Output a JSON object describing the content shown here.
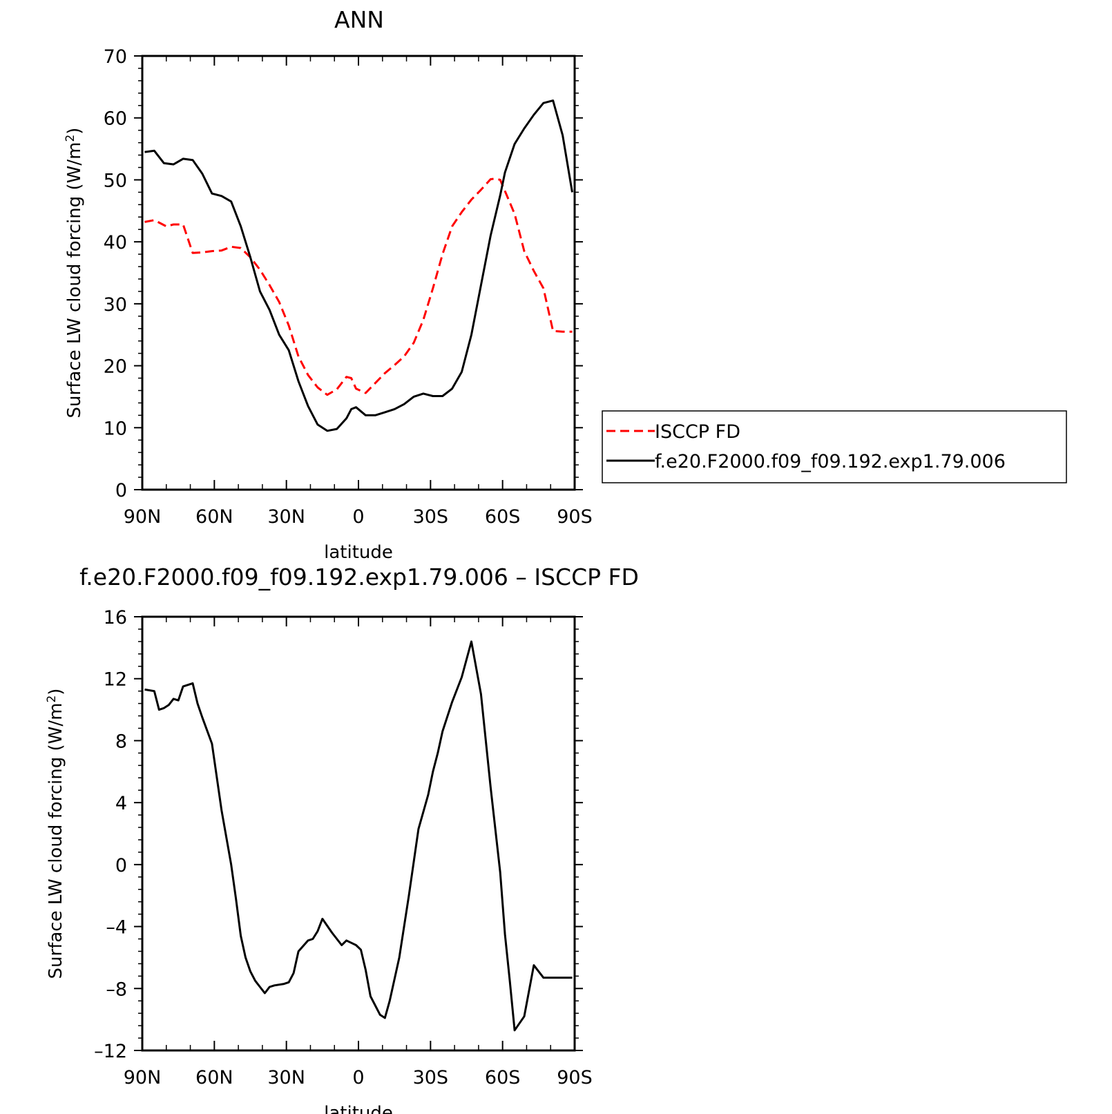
{
  "chart_data": [
    {
      "type": "line",
      "title": "ANN",
      "xlabel": "latitude",
      "ylabel": "Surface LW cloud forcing (W/m",
      "ylabel_sup": "2",
      "ylabel_end": ")",
      "xlim": [
        90,
        -90
      ],
      "ylim": [
        0,
        70
      ],
      "x_ticks": [
        {
          "value": 90,
          "label": "90N"
        },
        {
          "value": 60,
          "label": "60N"
        },
        {
          "value": 30,
          "label": "30N"
        },
        {
          "value": 0,
          "label": "0"
        },
        {
          "value": -30,
          "label": "30S"
        },
        {
          "value": -60,
          "label": "60S"
        },
        {
          "value": -90,
          "label": "90S"
        }
      ],
      "y_ticks": [
        {
          "value": 0,
          "label": "0"
        },
        {
          "value": 10,
          "label": "10"
        },
        {
          "value": 20,
          "label": "20"
        },
        {
          "value": 30,
          "label": "30"
        },
        {
          "value": 40,
          "label": "40"
        },
        {
          "value": 50,
          "label": "50"
        },
        {
          "value": 60,
          "label": "60"
        },
        {
          "value": 70,
          "label": "70"
        }
      ],
      "legend_position": "right",
      "series": [
        {
          "name": "ISCCP FD",
          "color": "#ff0000",
          "dash": true,
          "x": [
            89,
            85,
            80,
            77,
            73,
            69,
            65,
            61,
            57,
            53,
            49,
            45,
            41,
            37,
            33,
            29,
            25,
            21,
            17,
            13,
            9,
            5,
            3,
            1,
            -3,
            -7,
            -11,
            -15,
            -19,
            -23,
            -27,
            -31,
            -35,
            -39,
            -43,
            -47,
            -51,
            -55,
            -57,
            -59,
            -61,
            -65,
            -69,
            -73,
            -77,
            -81,
            -85,
            -89
          ],
          "y": [
            43.2,
            43.5,
            42.5,
            42.8,
            42.8,
            38.2,
            38.3,
            38.5,
            38.6,
            39.2,
            39.0,
            37.5,
            35.5,
            33.0,
            30.3,
            26.5,
            21.5,
            18.5,
            16.5,
            15.3,
            16.2,
            18.2,
            18.0,
            16.3,
            15.6,
            17.2,
            18.8,
            20.1,
            21.5,
            23.7,
            27.4,
            32.5,
            38.0,
            42.5,
            44.8,
            46.8,
            48.4,
            50.1,
            50.2,
            50.0,
            48.2,
            44.5,
            38.5,
            35.3,
            32.5,
            25.6,
            25.5,
            25.5
          ]
        },
        {
          "name": "f.e20.F2000.f09_f09.192.exp1.79.006",
          "color": "#000000",
          "dash": false,
          "x": [
            89,
            85,
            81,
            77,
            73,
            69,
            65,
            61,
            57,
            53,
            49,
            45,
            41,
            37,
            33,
            29,
            25,
            21,
            17,
            13,
            9,
            5,
            3,
            1,
            -3,
            -7,
            -11,
            -15,
            -19,
            -23,
            -27,
            -31,
            -35,
            -39,
            -43,
            -47,
            -51,
            -55,
            -59,
            -61,
            -63,
            -65,
            -69,
            -73,
            -77,
            -81,
            -85,
            -89
          ],
          "y": [
            54.5,
            54.7,
            52.7,
            52.5,
            53.4,
            53.2,
            51.0,
            47.8,
            47.4,
            46.5,
            42.5,
            37.5,
            32.0,
            29.0,
            25.0,
            22.5,
            17.5,
            13.5,
            10.5,
            9.5,
            9.8,
            11.5,
            13.0,
            13.3,
            12.0,
            12.0,
            12.5,
            13.0,
            13.8,
            15.0,
            15.5,
            15.1,
            15.1,
            16.3,
            19.0,
            25.0,
            33.0,
            41.0,
            47.5,
            51.2,
            53.5,
            55.8,
            58.3,
            60.5,
            62.4,
            62.8,
            57.2,
            48.0
          ]
        }
      ]
    },
    {
      "type": "line",
      "title": "f.e20.F2000.f09_f09.192.exp1.79.006 – ISCCP FD",
      "xlabel": "latitude",
      "ylabel": "Surface LW cloud forcing (W/m",
      "ylabel_sup": "2",
      "ylabel_end": ")",
      "xlim": [
        90,
        -90
      ],
      "ylim": [
        -12,
        16
      ],
      "x_ticks": [
        {
          "value": 90,
          "label": "90N"
        },
        {
          "value": 60,
          "label": "60N"
        },
        {
          "value": 30,
          "label": "30N"
        },
        {
          "value": 0,
          "label": "0"
        },
        {
          "value": -30,
          "label": "30S"
        },
        {
          "value": -60,
          "label": "60S"
        },
        {
          "value": -90,
          "label": "90S"
        }
      ],
      "y_ticks": [
        {
          "value": -12,
          "label": "–12"
        },
        {
          "value": -8,
          "label": "–8"
        },
        {
          "value": -4,
          "label": "–4"
        },
        {
          "value": 0,
          "label": "0"
        },
        {
          "value": 4,
          "label": "4"
        },
        {
          "value": 8,
          "label": "8"
        },
        {
          "value": 12,
          "label": "12"
        },
        {
          "value": 16,
          "label": "16"
        }
      ],
      "series": [
        {
          "color": "#000000",
          "dash": false,
          "x": [
            89,
            85,
            83,
            81,
            79,
            77,
            75,
            73,
            69,
            67,
            65,
            61,
            57,
            53,
            51,
            49,
            47,
            45,
            43,
            41,
            39,
            37,
            35,
            31,
            29,
            27,
            25,
            21,
            19,
            17,
            15,
            11,
            7,
            5,
            1,
            -1,
            -3,
            -5,
            -9,
            -11,
            -13,
            -17,
            -21,
            -25,
            -29,
            -31,
            -33,
            -35,
            -39,
            -43,
            -47,
            -51,
            -55,
            -59,
            -61,
            -63,
            -65,
            -69,
            -73,
            -77,
            -79,
            -81,
            -85,
            -89
          ],
          "y": [
            11.3,
            11.2,
            10.0,
            10.1,
            10.3,
            10.7,
            10.6,
            11.5,
            11.7,
            10.4,
            9.5,
            7.8,
            3.5,
            0.0,
            -2.2,
            -4.6,
            -6.0,
            -6.9,
            -7.5,
            -7.9,
            -8.3,
            -7.9,
            -7.8,
            -7.7,
            -7.6,
            -7.0,
            -5.6,
            -4.9,
            -4.8,
            -4.3,
            -3.5,
            -4.4,
            -5.2,
            -4.9,
            -5.2,
            -5.5,
            -6.8,
            -8.5,
            -9.7,
            -9.9,
            -8.8,
            -6.0,
            -2.0,
            2.3,
            4.5,
            6.0,
            7.2,
            8.6,
            10.5,
            12.1,
            14.4,
            11.0,
            5.0,
            -0.5,
            -4.5,
            -7.5,
            -10.7,
            -9.8,
            -6.5,
            -7.3,
            -7.3,
            -7.3,
            -7.3,
            -7.3
          ]
        }
      ]
    }
  ]
}
